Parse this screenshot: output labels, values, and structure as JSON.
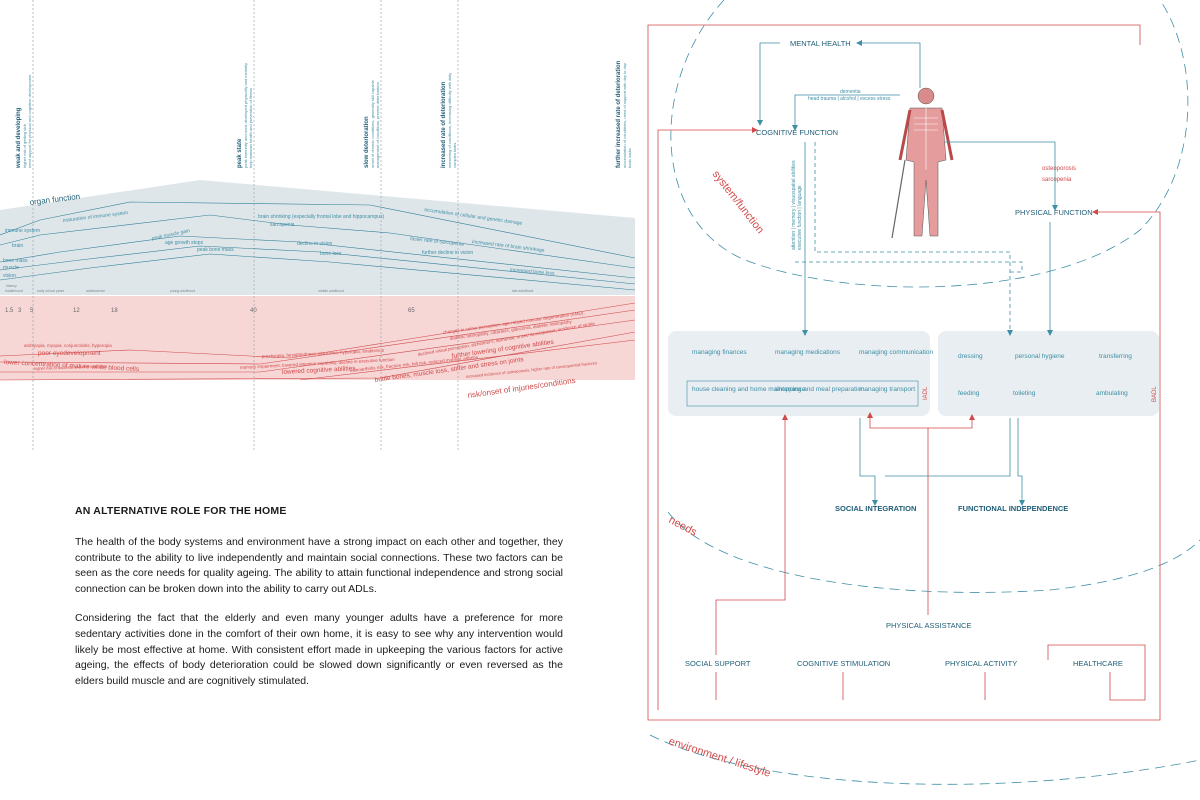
{
  "timeline": {
    "stages": [
      {
        "title": "weak and developing",
        "desc1": "higher risk of getting sick",
        "desc2": "need support for physical and cognitive development"
      },
      {
        "title": "peak state",
        "desc1": "peak immunity and most developed physically and mentally",
        "desc2": "help maintain health and prevention of illness"
      },
      {
        "title": "slow deterioration",
        "desc1": "onset of chronic conditions, generally still capable",
        "desc2": "management of conditions, prevent deterioration"
      },
      {
        "title": "increased rate of deterioration",
        "desc1": "worsening of conditions, increasing difficulty with daily",
        "desc2": "complex tasks"
      },
      {
        "title": "further increased rate of deterioration",
        "desc1": "accumulation of conditions, need of support with day to day",
        "desc2": "basic tasks"
      }
    ],
    "organ_label": "organ function",
    "blue_labels": {
      "immune_system": "immune system",
      "brain": "brain",
      "bone_mass": "bone mass",
      "muscle": "muscle",
      "vision": "vision",
      "maturation_immune": "maturation of immune system",
      "peak_muscle": "peak muscle gain",
      "age_growth": "age growth stops",
      "peak_bone": "peak bone mass",
      "brain_shrinking": "brain shrinking (especially frontal lobe and hippocampus)",
      "sarcopenia": "sarcopenia",
      "decline_vision": "decline in vision",
      "bone_loss": "bone loss",
      "accumulation": "accumulation of cellular and genetic damage",
      "faster_sarcopenia": "faster rate of sarcopenia",
      "increased_shrinkage": "increased rate of brain shrinkage",
      "further_vision": "further decline in vision",
      "increased_bone_loss": "increased bone loss"
    },
    "stage_bands": [
      "infancy",
      "toddlerhood",
      "preschool years",
      "early school years",
      "adolescence",
      "young adulthood",
      "middle adulthood",
      "late adulthood"
    ],
    "ages": [
      "1.5",
      "3",
      "5",
      "12",
      "18",
      "40",
      "65"
    ],
    "red_labels": {
      "amblyopia": "amblyopia, myopia, conjunctivitis, hyperopia",
      "poor_eye": "poor eyedevelopment",
      "higher_risk_infection": "higher risk of bacterial and viral infections",
      "lower_blood_cells": "lower concentration of mature white blood cells",
      "presbyopia": "presbyopia, farsightedness, glaucoma, hyperopia, strabismus",
      "memory_impairment": "memory impairment, lowered attention capability, decline in executive function",
      "lowered_cognitive": "lowered cognitive abilities",
      "osteoarthritis": "osteoarthritis risk, fracture risk, fall risk, reduced mobility, arthritis",
      "brittle": "brittle bones, muscle loss, stiffer and stress on joints",
      "changes_vision": "changes in colour perception, age-related macular degeneration (AMD),",
      "cataract": "diabetic retinopathy, cataracts, glaucoma, diabetic retinopathy",
      "dementia": "declined visual perception, alzheimer's, dementia, onset/ development, incidence of stroke",
      "further_cognitive": "further lowering of cognitive abilities",
      "increased_falls": "increased incidence of osteoporosis, higher rate of consequential fractures",
      "risk_label": "risk/onset of injuries/conditions"
    }
  },
  "article": {
    "heading": "AN ALTERNATIVE ROLE FOR THE HOME",
    "p1": "The health of the body systems and environment have a strong impact on each other and together, they contribute to the ability to live independently and maintain social connections. These two factors can be seen as the core needs for quality ageing. The ability to attain functional independence and strong social connection can be broken down into the ability to carry out ADLs.",
    "p2": "Considering the fact that the elderly and even many younger adults have a preference for more sedentary activities done in the comfort of their own home, it is easy to see why any intervention would likely be most effective at home. With consistent effort made in upkeeping the various factors for active ageing, the effects of body deterioration could be slowed down significantly or even reversed as the elders build muscle and are cognitively stimulated."
  },
  "diagram": {
    "mental_health": "MENTAL HEALTH",
    "cognitive_function": "COGNITIVE FUNCTION",
    "physical_function": "PHYSICAL FUNCTION",
    "dementia": "dementia",
    "head_trauma": "head trauma | alcohol | excess stress",
    "osteoporosis": "osteoporosis",
    "sarcopenia": "sarcopenia",
    "cog_vertical_1": "attention | memory | visuospatial abilities",
    "cog_vertical_2": "executive function | language",
    "system_function": "system/function",
    "needs": "needs",
    "environment": "environment / lifestyle",
    "iadl": {
      "label": "IADL",
      "items": [
        "managing finances",
        "managing medications",
        "managing communication",
        "house cleaning and home maintenance",
        "shopping and meal preparation",
        "managing transport"
      ]
    },
    "badl": {
      "label": "BADL",
      "items": [
        "dressing",
        "personal hygiene",
        "transferring",
        "feeding",
        "toileting",
        "ambulating"
      ]
    },
    "social_integration": "SOCIAL INTEGRATION",
    "functional_independence": "FUNCTIONAL INDEPENDENCE",
    "physical_assistance": "PHYSICAL ASSISTANCE",
    "bottom": [
      "SOCIAL SUPPORT",
      "COGNITIVE STIMULATION",
      "PHYSICAL ACTIVITY",
      "HEALTHCARE"
    ]
  },
  "colors": {
    "blue": "#3f8fa6",
    "red": "#d14a4a",
    "navy": "#1f5d76",
    "blue_band": "#dfe6ea",
    "red_band": "#f7d6d6",
    "box": "#e8eef1"
  }
}
